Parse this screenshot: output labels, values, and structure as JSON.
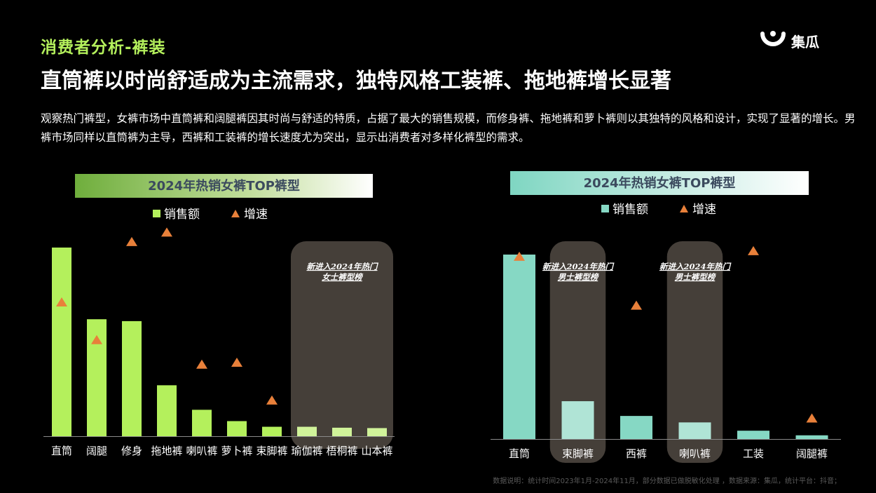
{
  "section_tag": "消费者分析-裤装",
  "logo": {
    "name": "集瓜",
    "icon": "jigua-logo-icon"
  },
  "headline": "直筒裤以时尚舒适成为主流需求，独特风格工装裤、拖地裤增长显著",
  "description": "观察热门裤型，女裤市场中直筒裤和阔腿裤因其时尚与舒适的特质，占据了最大的销售规模，而修身裤、拖地裤和萝卜裤则以其独特的风格和设计，实现了显著的增长。男裤市场同样以直筒裤为主导，西裤和工装裤的增长速度尤为突出，显示出消费者对多样化裤型的需求。",
  "footnote": "数据说明：统计时间2023年1月-2024年11月，部分数据已做脱敏化处理 ，数据来源：集瓜，统计平台：抖音；",
  "colors": {
    "accent": "#b4f05c",
    "women_bar": "#b4f05c",
    "women_bar_new": "#d0f39a",
    "men_bar": "#86d8c4",
    "men_bar_new": "#b0e4d6",
    "growth_marker": "#e8803a",
    "highlight_panel": "#453f39"
  },
  "chart_data": [
    {
      "type": "bar",
      "title": "2024年热销女裤TOP裤型",
      "legend": {
        "bar": "销售额",
        "marker": "增速",
        "position": "top-center"
      },
      "categories": [
        "直筒",
        "阔腿",
        "修身",
        "拖地裤",
        "喇叭裤",
        "萝卜裤",
        "束脚裤",
        "瑜伽裤",
        "梧桐裤",
        "山本裤"
      ],
      "series": [
        {
          "name": "销售额",
          "kind": "bar",
          "values": [
            100,
            62,
            61,
            27,
            14,
            8,
            5,
            5,
            4.5,
            4.3
          ]
        },
        {
          "name": "增速",
          "kind": "marker",
          "values": [
            71,
            51,
            103,
            108,
            38,
            39,
            19,
            0,
            0,
            0
          ]
        }
      ],
      "highlight": {
        "label": "新进入2024年热门女士裤型榜",
        "categories": [
          "瑜伽裤",
          "梧桐裤",
          "山本裤"
        ]
      },
      "bar_ylim": [
        0,
        100
      ],
      "marker_ylim": [
        0,
        110
      ],
      "axis_labels": false,
      "grid": false
    },
    {
      "type": "bar",
      "title": "2024年热销女裤TOP裤型",
      "legend": {
        "bar": "销售额",
        "marker": "增速",
        "position": "top-center"
      },
      "categories": [
        "直筒",
        "束脚裤",
        "西裤",
        "喇叭裤",
        "工装",
        "阔腿裤"
      ],
      "series": [
        {
          "name": "销售额",
          "kind": "bar",
          "values": [
            100,
            20.5,
            12.5,
            9,
            4.5,
            2
          ]
        },
        {
          "name": "增速",
          "kind": "marker",
          "values": [
            97,
            0,
            71,
            0,
            100,
            11
          ]
        }
      ],
      "highlight": [
        {
          "label": "新进入2024年热门男士裤型榜",
          "categories": [
            "束脚裤"
          ]
        },
        {
          "label": "新进入2024年热门男士裤型榜",
          "categories": [
            "喇叭裤"
          ]
        }
      ],
      "bar_ylim": [
        0,
        100
      ],
      "marker_ylim": [
        0,
        110
      ],
      "axis_labels": false,
      "grid": false
    }
  ]
}
